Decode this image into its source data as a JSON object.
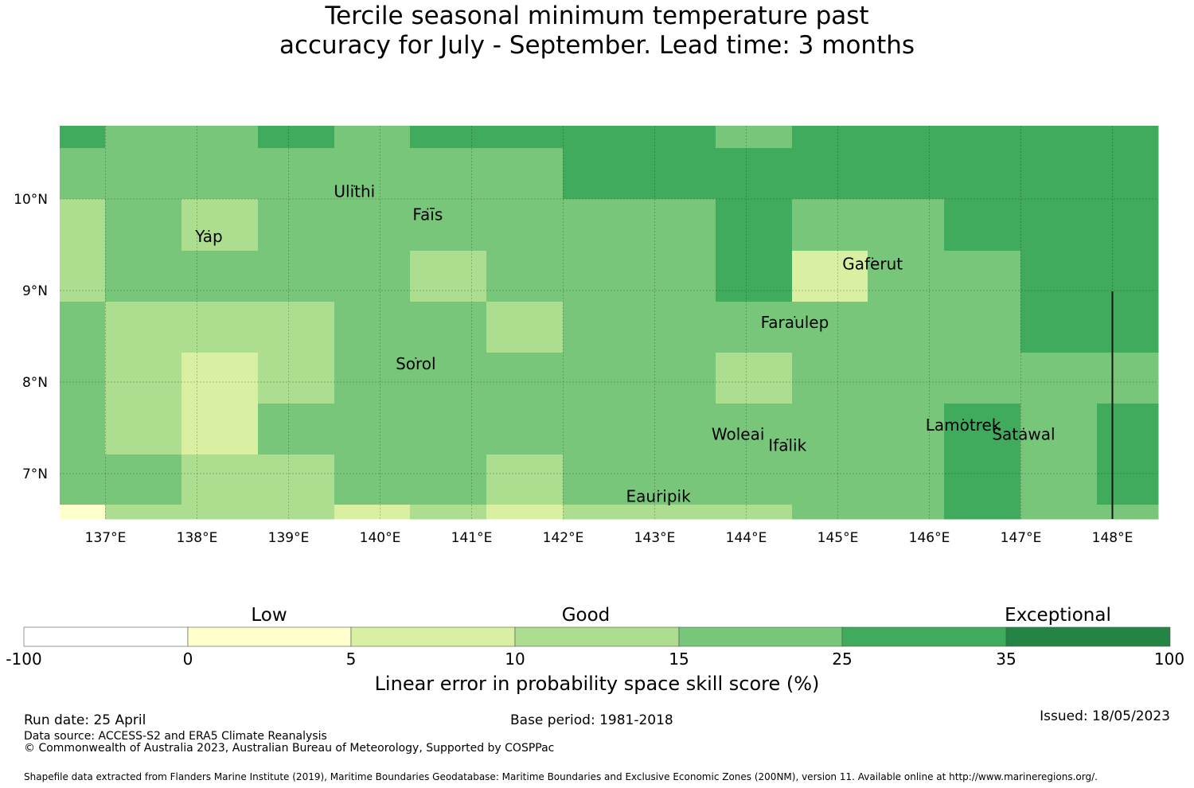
{
  "title": {
    "line1": "Tercile seasonal minimum temperature past",
    "line2": "accuracy for July - September. Lead time: 3 months"
  },
  "map": {
    "lon_range": [
      137,
      149
    ],
    "lat_range": [
      6.5,
      10.8
    ],
    "grid_lons": [
      137,
      138,
      139,
      140,
      141,
      142,
      143,
      144,
      145,
      146,
      147,
      148
    ],
    "grid_lats": [
      7,
      8,
      9,
      10
    ],
    "x_tick_labels": [
      "137°E",
      "138°E",
      "139°E",
      "140°E",
      "141°E",
      "142°E",
      "143°E",
      "144°E",
      "145°E",
      "146°E",
      "147°E",
      "148°E"
    ],
    "y_tick_labels": [
      "7°N",
      "8°N",
      "9°N",
      "10°N"
    ],
    "category_colors": {
      "0": "#ffffcc",
      "5": "#d9f0a3",
      "10": "#addd8e",
      "15": "#78c679",
      "25": "#41ab5d",
      "35": "#238443"
    },
    "cell_rows": [
      "25 15 15 25 15 25 25 25 25 15 25 25 25 25 25",
      "15 15 15 15 15 15 15 25 25 25 25 25 25 25 25",
      "10 15 10 15 15 15 15 15 15 25 15 15 25 25 25",
      "10 15 15 15 15 10 15 15 15 25 5 15 15 25 25",
      "15 10 10 10 15 15 10 15 15 15 15 15 15 25 25",
      "15 10 5 10 15 15 15 15 15 10 15 15 15 15 15",
      "15 10 5 15 15 15 15 15 15 15 15 15 25 15 25",
      "15 15 10 10 15 15 10 15 15 15 15 15 25 15 25",
      "0 10 10 10 5 10 5 10 10 10 15 15 25 15 15"
    ],
    "places": [
      {
        "name": "Ulithi",
        "lon": 139.72,
        "lat": 10.02
      },
      {
        "name": "Faīs",
        "lon": 140.52,
        "lat": 9.77
      },
      {
        "name": "Yap",
        "lon": 138.13,
        "lat": 9.53
      },
      {
        "name": "Gaferut",
        "lon": 145.38,
        "lat": 9.23
      },
      {
        "name": "Faraulep",
        "lon": 144.53,
        "lat": 8.59
      },
      {
        "name": "Sorol",
        "lon": 140.39,
        "lat": 8.14
      },
      {
        "name": "Woleai",
        "lon": 143.91,
        "lat": 7.37
      },
      {
        "name": "Ifalik",
        "lon": 144.45,
        "lat": 7.25
      },
      {
        "name": "Lamotrek",
        "lon": 146.37,
        "lat": 7.47
      },
      {
        "name": "Satawal",
        "lon": 147.03,
        "lat": 7.37
      },
      {
        "name": "Eauripik",
        "lon": 143.04,
        "lat": 6.69
      }
    ],
    "boundary_line_lon": 148
  },
  "colorbar": {
    "categories": [
      "Low",
      "Good",
      "Exceptional"
    ],
    "ticks": [
      "-100",
      "0",
      "5",
      "10",
      "15",
      "25",
      "35",
      "100"
    ],
    "colors": [
      "#ffffff",
      "#ffffcc",
      "#d9f0a3",
      "#addd8e",
      "#78c679",
      "#41ab5d",
      "#238443"
    ],
    "label": "Linear error in probability space skill score (%)"
  },
  "footer": {
    "run_date": "Run date: 25 April",
    "base_period": "Base period: 1981-2018",
    "issued": "Issued: 18/05/2023",
    "data_source": "Data source: ACCESS-S2 and ERA5 Climate Reanalysis",
    "copyright": "© Commonwealth of Australia 2023, Australian Bureau of Meteorology, Supported by COSPPac",
    "shapefile": "Shapefile data extracted from Flanders Marine Institute (2019), Maritime Boundaries Geodatabase: Maritime Boundaries and Exclusive Economic Zones (200NM), version 11. Available online at http://www.marineregions.org/."
  }
}
